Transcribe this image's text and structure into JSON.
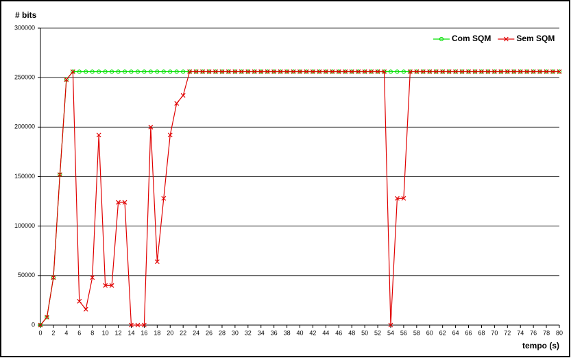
{
  "chart_data": {
    "type": "line",
    "y_label": "# bits",
    "x_label": "tempo (s)",
    "x": [
      0,
      1,
      2,
      3,
      4,
      5,
      6,
      7,
      8,
      9,
      10,
      11,
      12,
      13,
      14,
      15,
      16,
      17,
      18,
      19,
      20,
      21,
      22,
      23,
      24,
      25,
      26,
      27,
      28,
      29,
      30,
      31,
      32,
      33,
      34,
      35,
      36,
      37,
      38,
      39,
      40,
      41,
      42,
      43,
      44,
      45,
      46,
      47,
      48,
      49,
      50,
      51,
      52,
      53,
      54,
      55,
      56,
      57,
      58,
      59,
      60,
      61,
      62,
      63,
      64,
      65,
      66,
      67,
      68,
      69,
      70,
      71,
      72,
      73,
      74,
      75,
      76,
      77,
      78,
      79,
      80
    ],
    "series": [
      {
        "name": "Com SQM",
        "color": "#00e000",
        "marker": "circle",
        "values": [
          0,
          8000,
          48000,
          152000,
          248000,
          256000,
          256000,
          256000,
          256000,
          256000,
          256000,
          256000,
          256000,
          256000,
          256000,
          256000,
          256000,
          256000,
          256000,
          256000,
          256000,
          256000,
          256000,
          256000,
          256000,
          256000,
          256000,
          256000,
          256000,
          256000,
          256000,
          256000,
          256000,
          256000,
          256000,
          256000,
          256000,
          256000,
          256000,
          256000,
          256000,
          256000,
          256000,
          256000,
          256000,
          256000,
          256000,
          256000,
          256000,
          256000,
          256000,
          256000,
          256000,
          256000,
          256000,
          256000,
          256000,
          256000,
          256000,
          256000,
          256000,
          256000,
          256000,
          256000,
          256000,
          256000,
          256000,
          256000,
          256000,
          256000,
          256000,
          256000,
          256000,
          256000,
          256000,
          256000,
          256000,
          256000,
          256000,
          256000,
          256000
        ]
      },
      {
        "name": "Sem SQM",
        "color": "#e00000",
        "marker": "x",
        "values": [
          0,
          8000,
          48000,
          152000,
          248000,
          256000,
          24000,
          16000,
          48000,
          192000,
          40000,
          40000,
          124000,
          124000,
          0,
          0,
          0,
          200000,
          64000,
          128000,
          192000,
          224000,
          232000,
          256000,
          256000,
          256000,
          256000,
          256000,
          256000,
          256000,
          256000,
          256000,
          256000,
          256000,
          256000,
          256000,
          256000,
          256000,
          256000,
          256000,
          256000,
          256000,
          256000,
          256000,
          256000,
          256000,
          256000,
          256000,
          256000,
          256000,
          256000,
          256000,
          256000,
          256000,
          0,
          128000,
          128000,
          256000,
          256000,
          256000,
          256000,
          256000,
          256000,
          256000,
          256000,
          256000,
          256000,
          256000,
          256000,
          256000,
          256000,
          256000,
          256000,
          256000,
          256000,
          256000,
          256000,
          256000,
          256000,
          256000,
          256000
        ]
      }
    ],
    "xlim": [
      0,
      80
    ],
    "xticks": [
      0,
      2,
      4,
      6,
      8,
      10,
      12,
      14,
      16,
      18,
      20,
      22,
      24,
      26,
      28,
      30,
      32,
      34,
      36,
      38,
      40,
      42,
      44,
      46,
      48,
      50,
      52,
      54,
      56,
      58,
      60,
      62,
      64,
      66,
      68,
      70,
      72,
      74,
      76,
      78,
      80
    ],
    "ylim": [
      0,
      300000
    ],
    "yticks": [
      0,
      50000,
      100000,
      150000,
      200000,
      250000,
      300000
    ],
    "grid": true,
    "legend": "top-right"
  }
}
